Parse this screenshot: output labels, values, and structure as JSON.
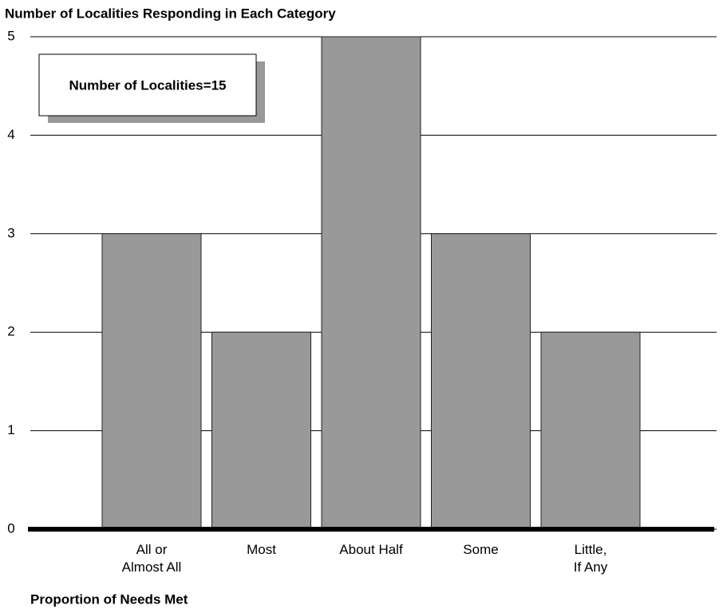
{
  "chart_data": {
    "type": "bar",
    "title": "Number of Localities Responding in Each Category",
    "x_label": "Proportion of Needs Met",
    "annotation": "Number of Localities=15",
    "categories": [
      "All or\nAlmost All",
      "Most",
      "About Half",
      "Some",
      "Little,\nIf Any"
    ],
    "values": [
      3,
      2,
      5,
      3,
      2
    ],
    "color": "#999999",
    "ylim": [
      0,
      5
    ],
    "yticks": [
      0,
      1,
      2,
      3,
      4,
      5
    ],
    "grid": true
  }
}
